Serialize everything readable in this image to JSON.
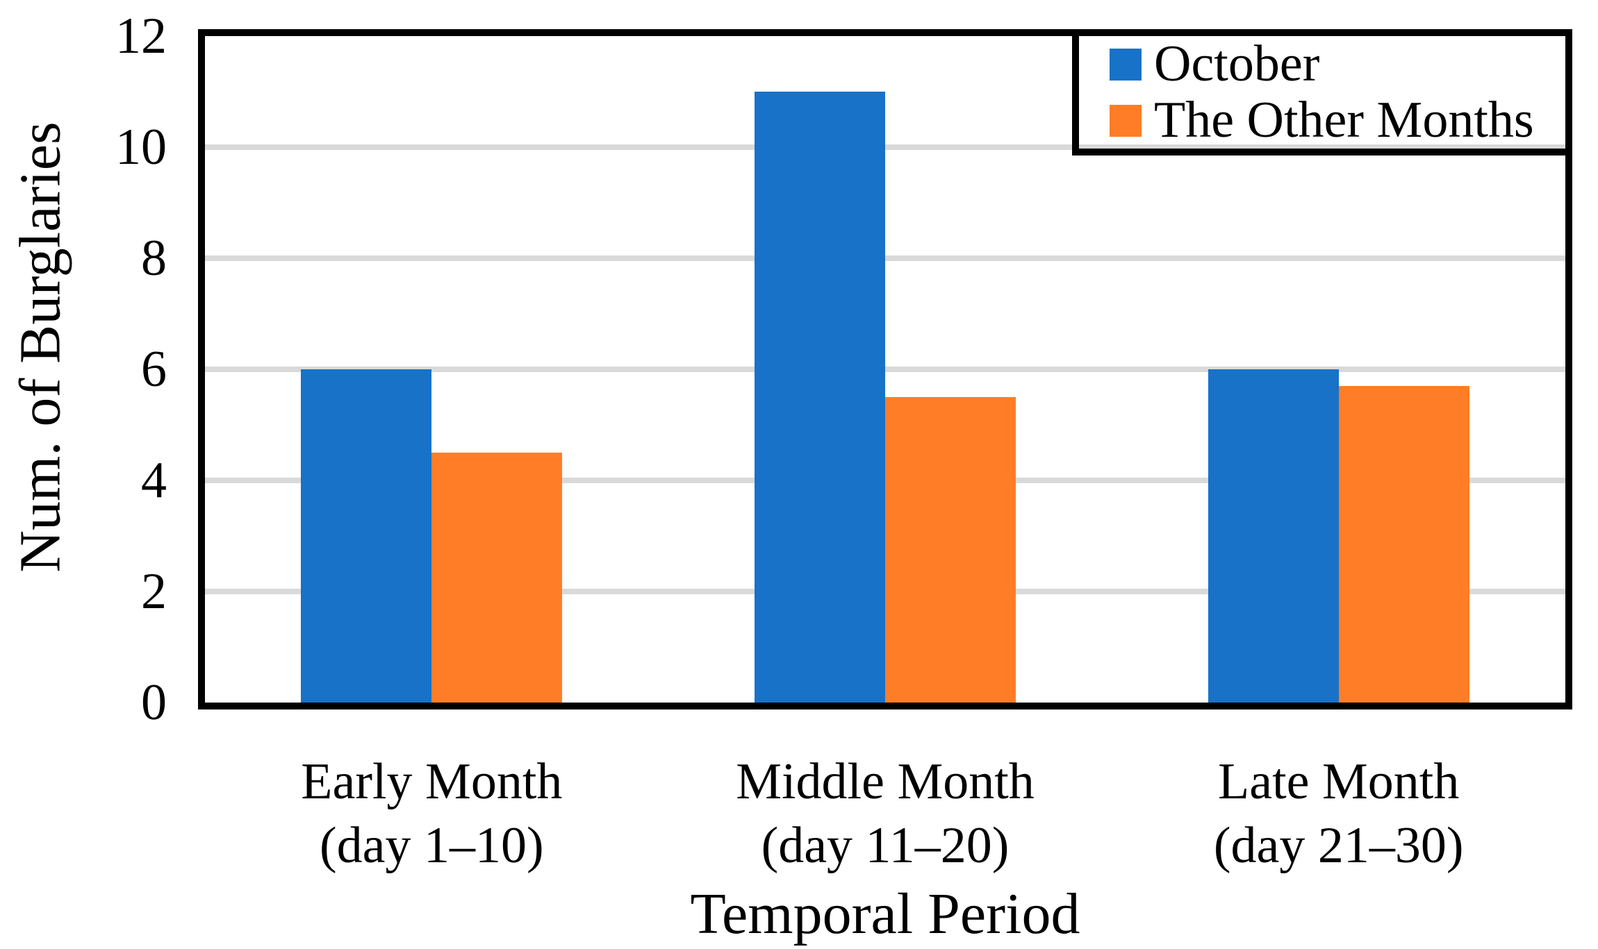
{
  "chart_data": {
    "type": "bar",
    "title": "",
    "xlabel": "Temporal Period",
    "ylabel": "Num. of Burglaries",
    "categories": [
      "Early Month",
      "Middle Month",
      "Late Month"
    ],
    "category_sublabels": [
      "(day 1–10)",
      "(day 11–20)",
      "(day 21–30)"
    ],
    "series": [
      {
        "name": "October",
        "color": "#1772C8",
        "values": [
          6,
          11,
          6
        ]
      },
      {
        "name": "The Other Months",
        "color": "#FF7D26",
        "values": [
          4.5,
          5.5,
          5.7
        ]
      }
    ],
    "ylim": [
      0,
      12
    ],
    "yticks": [
      0,
      2,
      4,
      6,
      8,
      10,
      12
    ],
    "grid": true,
    "gridline_color": "#D9D9D9",
    "axis_color": "#000000",
    "legend_position": "top-right"
  }
}
